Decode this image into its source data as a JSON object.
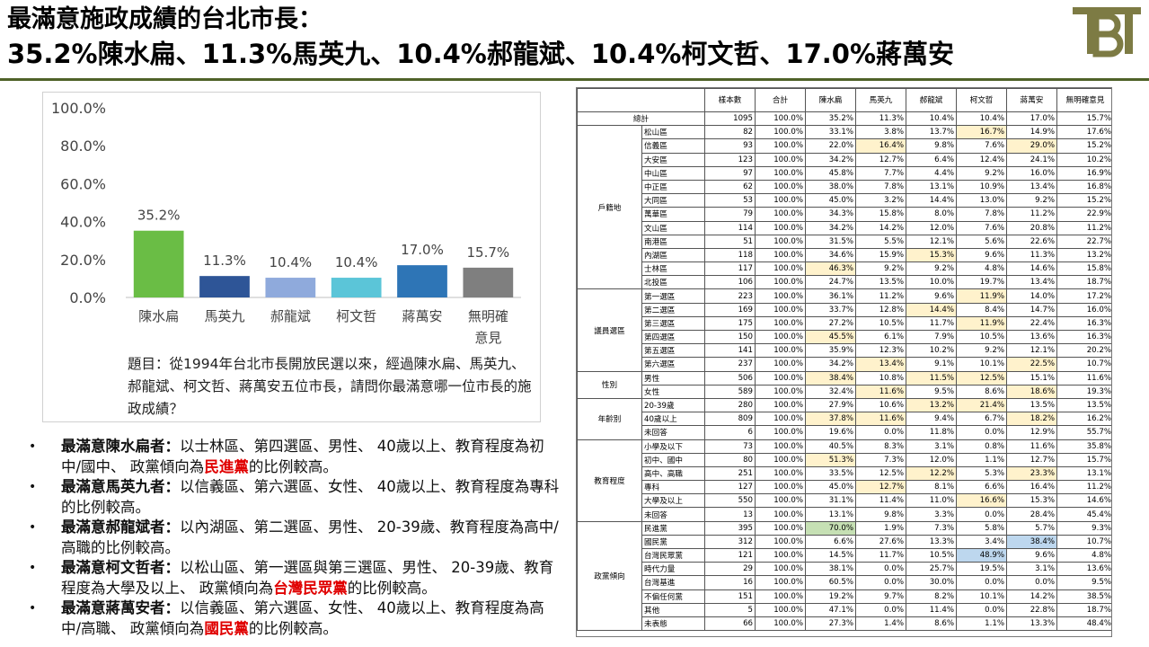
{
  "title": {
    "line1": "最滿意施政成績的台北市長：",
    "line2": "35.2%陳水扁、11.3%馬英九、10.4%郝龍斌、10.4%柯文哲、17.0%蔣萬安"
  },
  "colors": {
    "rule": "#4f6228",
    "logo": "#7d7b44",
    "highlight_yellow": "#fff2cc",
    "highlight_green": "#c6e0b4",
    "highlight_blue": "#bdd7ee"
  },
  "chart_data": {
    "type": "bar",
    "categories": [
      "陳水扁",
      "馬英九",
      "郝龍斌",
      "柯文哲",
      "蔣萬安",
      "無明確\n意見"
    ],
    "values": [
      35.2,
      11.3,
      10.4,
      10.4,
      17.0,
      15.7
    ],
    "value_labels": [
      "35.2%",
      "11.3%",
      "10.4%",
      "10.4%",
      "17.0%",
      "15.7%"
    ],
    "bar_colors": [
      "#6abd45",
      "#2e5597",
      "#8faadc",
      "#5bc5d8",
      "#2e75b6",
      "#7f7f7f"
    ],
    "ylim": [
      0,
      100
    ],
    "yticks": [
      "0.0%",
      "20.0%",
      "40.0%",
      "60.0%",
      "80.0%",
      "100.0%"
    ],
    "ytick_values": [
      0,
      20,
      40,
      60,
      80,
      100
    ],
    "grid": false,
    "xlabel": "",
    "ylabel": ""
  },
  "question": "題目：從1994年台北市長開放民選以來，經過陳水扁、馬英九、郝龍斌、柯文哲、蔣萬安五位市長，請問你最滿意哪一位市長的施政成績？",
  "bullets": [
    {
      "bold": "最滿意陳水扁者：",
      "text": "以士林區、第四選區、男性、 40歲以上、教育程度為初中/國中、 政黨傾向為",
      "red": "民進黨",
      "tail": "的比例較高。"
    },
    {
      "bold": "最滿意馬英九者：",
      "text": "以信義區、第六選區、女性、 40歲以上、教育程度為專科的比例較高。",
      "red": "",
      "tail": ""
    },
    {
      "bold": "最滿意郝龍斌者：",
      "text": "以內湖區、第二選區、男性、 20-39歲、教育程度為高中/高職的比例較高。",
      "red": "",
      "tail": ""
    },
    {
      "bold": "最滿意柯文哲者：",
      "text": "以松山區、第一選區與第三選區、男性、 20-39歲、教育程度為大學及以上、 政黨傾向為",
      "red": "台灣民眾黨",
      "tail": "的比例較高。"
    },
    {
      "bold": "最滿意蔣萬安者：",
      "text": "以信義區、第六選區、女性、 40歲以上、教育程度為高中/高職、 政黨傾向為",
      "red": "國民黨",
      "tail": "的比例較高。"
    }
  ],
  "table": {
    "headers": [
      "樣本數",
      "合計",
      "陳水扁",
      "馬英九",
      "郝龍斌",
      "柯文哲",
      "蔣萬安",
      "無明確意見"
    ],
    "total_label": "總計",
    "total_row": [
      "1095",
      "100.0%",
      "35.2%",
      "11.3%",
      "10.4%",
      "10.4%",
      "17.0%",
      "15.7%"
    ],
    "groups": [
      {
        "name": "戶籍地",
        "rows": [
          {
            "label": "松山區",
            "cells": [
              "82",
              "100.0%",
              "33.1%",
              "3.8%",
              "13.7%",
              "16.7%",
              "14.9%",
              "17.6%"
            ],
            "hl": [
              0,
              0,
              0,
              0,
              0,
              1,
              0,
              0
            ]
          },
          {
            "label": "信義區",
            "cells": [
              "93",
              "100.0%",
              "22.0%",
              "16.4%",
              "9.8%",
              "7.6%",
              "29.0%",
              "15.2%"
            ],
            "hl": [
              0,
              0,
              0,
              1,
              0,
              0,
              1,
              0
            ]
          },
          {
            "label": "大安區",
            "cells": [
              "123",
              "100.0%",
              "34.2%",
              "12.7%",
              "6.4%",
              "12.4%",
              "24.1%",
              "10.2%"
            ],
            "hl": [
              0,
              0,
              0,
              0,
              0,
              0,
              0,
              0
            ]
          },
          {
            "label": "中山區",
            "cells": [
              "97",
              "100.0%",
              "45.8%",
              "7.7%",
              "4.4%",
              "9.2%",
              "16.0%",
              "16.9%"
            ],
            "hl": [
              0,
              0,
              0,
              0,
              0,
              0,
              0,
              0
            ]
          },
          {
            "label": "中正區",
            "cells": [
              "62",
              "100.0%",
              "38.0%",
              "7.8%",
              "13.1%",
              "10.9%",
              "13.4%",
              "16.8%"
            ],
            "hl": [
              0,
              0,
              0,
              0,
              0,
              0,
              0,
              0
            ]
          },
          {
            "label": "大同區",
            "cells": [
              "53",
              "100.0%",
              "45.0%",
              "3.2%",
              "14.4%",
              "13.0%",
              "9.2%",
              "15.2%"
            ],
            "hl": [
              0,
              0,
              0,
              0,
              0,
              0,
              0,
              0
            ]
          },
          {
            "label": "萬華區",
            "cells": [
              "79",
              "100.0%",
              "34.3%",
              "15.8%",
              "8.0%",
              "7.8%",
              "11.2%",
              "22.9%"
            ],
            "hl": [
              0,
              0,
              0,
              0,
              0,
              0,
              0,
              0
            ]
          },
          {
            "label": "文山區",
            "cells": [
              "114",
              "100.0%",
              "34.2%",
              "14.2%",
              "12.0%",
              "7.6%",
              "20.8%",
              "11.2%"
            ],
            "hl": [
              0,
              0,
              0,
              0,
              0,
              0,
              0,
              0
            ]
          },
          {
            "label": "南港區",
            "cells": [
              "51",
              "100.0%",
              "31.5%",
              "5.5%",
              "12.1%",
              "5.6%",
              "22.6%",
              "22.7%"
            ],
            "hl": [
              0,
              0,
              0,
              0,
              0,
              0,
              0,
              0
            ]
          },
          {
            "label": "內湖區",
            "cells": [
              "118",
              "100.0%",
              "34.6%",
              "15.9%",
              "15.3%",
              "9.6%",
              "11.3%",
              "13.2%"
            ],
            "hl": [
              0,
              0,
              0,
              0,
              1,
              0,
              0,
              0
            ]
          },
          {
            "label": "士林區",
            "cells": [
              "117",
              "100.0%",
              "46.3%",
              "9.2%",
              "9.2%",
              "4.8%",
              "14.6%",
              "15.8%"
            ],
            "hl": [
              0,
              0,
              1,
              0,
              0,
              0,
              0,
              0
            ]
          },
          {
            "label": "北投區",
            "cells": [
              "106",
              "100.0%",
              "24.7%",
              "13.5%",
              "10.0%",
              "19.7%",
              "13.4%",
              "18.7%"
            ],
            "hl": [
              0,
              0,
              0,
              0,
              0,
              0,
              0,
              0
            ]
          }
        ]
      },
      {
        "name": "議員選區",
        "rows": [
          {
            "label": "第一選區",
            "cells": [
              "223",
              "100.0%",
              "36.1%",
              "11.2%",
              "9.6%",
              "11.9%",
              "14.0%",
              "17.2%"
            ],
            "hl": [
              0,
              0,
              0,
              0,
              0,
              1,
              0,
              0
            ]
          },
          {
            "label": "第二選區",
            "cells": [
              "169",
              "100.0%",
              "33.7%",
              "12.8%",
              "14.4%",
              "8.4%",
              "14.7%",
              "16.0%"
            ],
            "hl": [
              0,
              0,
              0,
              0,
              1,
              0,
              0,
              0
            ]
          },
          {
            "label": "第三選區",
            "cells": [
              "175",
              "100.0%",
              "27.2%",
              "10.5%",
              "11.7%",
              "11.9%",
              "22.4%",
              "16.3%"
            ],
            "hl": [
              0,
              0,
              0,
              0,
              0,
              1,
              0,
              0
            ]
          },
          {
            "label": "第四選區",
            "cells": [
              "150",
              "100.0%",
              "45.5%",
              "6.1%",
              "7.9%",
              "10.5%",
              "13.6%",
              "16.3%"
            ],
            "hl": [
              0,
              0,
              1,
              0,
              0,
              0,
              0,
              0
            ]
          },
          {
            "label": "第五選區",
            "cells": [
              "141",
              "100.0%",
              "35.9%",
              "12.3%",
              "10.2%",
              "9.2%",
              "12.1%",
              "20.2%"
            ],
            "hl": [
              0,
              0,
              0,
              0,
              0,
              0,
              0,
              0
            ]
          },
          {
            "label": "第六選區",
            "cells": [
              "237",
              "100.0%",
              "34.2%",
              "13.4%",
              "9.1%",
              "10.1%",
              "22.5%",
              "10.7%"
            ],
            "hl": [
              0,
              0,
              0,
              1,
              0,
              0,
              1,
              0
            ]
          }
        ]
      },
      {
        "name": "性別",
        "rows": [
          {
            "label": "男性",
            "cells": [
              "506",
              "100.0%",
              "38.4%",
              "10.8%",
              "11.5%",
              "12.5%",
              "15.1%",
              "11.6%"
            ],
            "hl": [
              0,
              0,
              1,
              0,
              1,
              1,
              0,
              0
            ]
          },
          {
            "label": "女性",
            "cells": [
              "589",
              "100.0%",
              "32.4%",
              "11.6%",
              "9.5%",
              "8.6%",
              "18.6%",
              "19.3%"
            ],
            "hl": [
              0,
              0,
              0,
              1,
              0,
              0,
              1,
              0
            ]
          }
        ]
      },
      {
        "name": "年齡別",
        "rows": [
          {
            "label": "20-39歲",
            "cells": [
              "280",
              "100.0%",
              "27.9%",
              "10.6%",
              "13.2%",
              "21.4%",
              "13.5%",
              "13.5%"
            ],
            "hl": [
              0,
              0,
              0,
              0,
              1,
              1,
              0,
              0
            ]
          },
          {
            "label": "40歲以上",
            "cells": [
              "809",
              "100.0%",
              "37.8%",
              "11.6%",
              "9.4%",
              "6.7%",
              "18.2%",
              "16.2%"
            ],
            "hl": [
              0,
              0,
              1,
              1,
              0,
              0,
              1,
              0
            ]
          },
          {
            "label": "未回答",
            "cells": [
              "6",
              "100.0%",
              "19.6%",
              "0.0%",
              "11.8%",
              "0.0%",
              "12.9%",
              "55.7%"
            ],
            "hl": [
              0,
              0,
              0,
              0,
              0,
              0,
              0,
              0
            ]
          }
        ]
      },
      {
        "name": "教育程度",
        "rows": [
          {
            "label": "小學及以下",
            "cells": [
              "73",
              "100.0%",
              "40.5%",
              "8.3%",
              "3.1%",
              "0.8%",
              "11.6%",
              "35.8%"
            ],
            "hl": [
              0,
              0,
              0,
              0,
              0,
              0,
              0,
              0
            ]
          },
          {
            "label": "初中、國中",
            "cells": [
              "80",
              "100.0%",
              "51.3%",
              "7.3%",
              "12.0%",
              "1.1%",
              "12.7%",
              "15.7%"
            ],
            "hl": [
              0,
              0,
              1,
              0,
              0,
              0,
              0,
              0
            ]
          },
          {
            "label": "高中、高職",
            "cells": [
              "251",
              "100.0%",
              "33.5%",
              "12.5%",
              "12.2%",
              "5.3%",
              "23.3%",
              "13.1%"
            ],
            "hl": [
              0,
              0,
              0,
              0,
              1,
              0,
              1,
              0
            ]
          },
          {
            "label": "專科",
            "cells": [
              "127",
              "100.0%",
              "45.0%",
              "12.7%",
              "8.1%",
              "6.6%",
              "16.4%",
              "11.2%"
            ],
            "hl": [
              0,
              0,
              0,
              1,
              0,
              0,
              0,
              0
            ]
          },
          {
            "label": "大學及以上",
            "cells": [
              "550",
              "100.0%",
              "31.1%",
              "11.4%",
              "11.0%",
              "16.6%",
              "15.3%",
              "14.6%"
            ],
            "hl": [
              0,
              0,
              0,
              0,
              0,
              1,
              0,
              0
            ]
          },
          {
            "label": "未回答",
            "cells": [
              "13",
              "100.0%",
              "13.1%",
              "9.8%",
              "3.3%",
              "0.0%",
              "28.4%",
              "45.4%"
            ],
            "hl": [
              0,
              0,
              0,
              0,
              0,
              0,
              0,
              0
            ]
          }
        ]
      },
      {
        "name": "政黨傾向",
        "rows": [
          {
            "label": "民進黨",
            "cells": [
              "395",
              "100.0%",
              "70.0%",
              "1.9%",
              "7.3%",
              "5.8%",
              "5.7%",
              "9.3%"
            ],
            "hl": [
              0,
              0,
              2,
              0,
              0,
              0,
              0,
              0
            ]
          },
          {
            "label": "國民黨",
            "cells": [
              "312",
              "100.0%",
              "6.6%",
              "27.6%",
              "13.3%",
              "3.4%",
              "38.4%",
              "10.7%"
            ],
            "hl": [
              0,
              0,
              0,
              0,
              0,
              0,
              3,
              0
            ]
          },
          {
            "label": "台灣民眾黨",
            "cells": [
              "121",
              "100.0%",
              "14.5%",
              "11.7%",
              "10.5%",
              "48.9%",
              "9.6%",
              "4.8%"
            ],
            "hl": [
              0,
              0,
              0,
              0,
              0,
              3,
              0,
              0
            ]
          },
          {
            "label": "時代力量",
            "cells": [
              "29",
              "100.0%",
              "38.1%",
              "0.0%",
              "25.7%",
              "19.5%",
              "3.1%",
              "13.6%"
            ],
            "hl": [
              0,
              0,
              0,
              0,
              0,
              0,
              0,
              0
            ]
          },
          {
            "label": "台灣基進",
            "cells": [
              "16",
              "100.0%",
              "60.5%",
              "0.0%",
              "30.0%",
              "0.0%",
              "0.0%",
              "9.5%"
            ],
            "hl": [
              0,
              0,
              0,
              0,
              0,
              0,
              0,
              0
            ]
          },
          {
            "label": "不偏任何黨",
            "cells": [
              "151",
              "100.0%",
              "19.2%",
              "9.7%",
              "8.2%",
              "10.1%",
              "14.2%",
              "38.5%"
            ],
            "hl": [
              0,
              0,
              0,
              0,
              0,
              0,
              0,
              0
            ]
          },
          {
            "label": "其他",
            "cells": [
              "5",
              "100.0%",
              "47.1%",
              "0.0%",
              "11.4%",
              "0.0%",
              "22.8%",
              "18.7%"
            ],
            "hl": [
              0,
              0,
              0,
              0,
              0,
              0,
              0,
              0
            ]
          },
          {
            "label": "未表態",
            "cells": [
              "66",
              "100.0%",
              "27.3%",
              "1.4%",
              "8.6%",
              "1.1%",
              "13.3%",
              "48.4%"
            ],
            "hl": [
              0,
              0,
              0,
              0,
              0,
              0,
              0,
              0
            ]
          }
        ]
      }
    ]
  }
}
